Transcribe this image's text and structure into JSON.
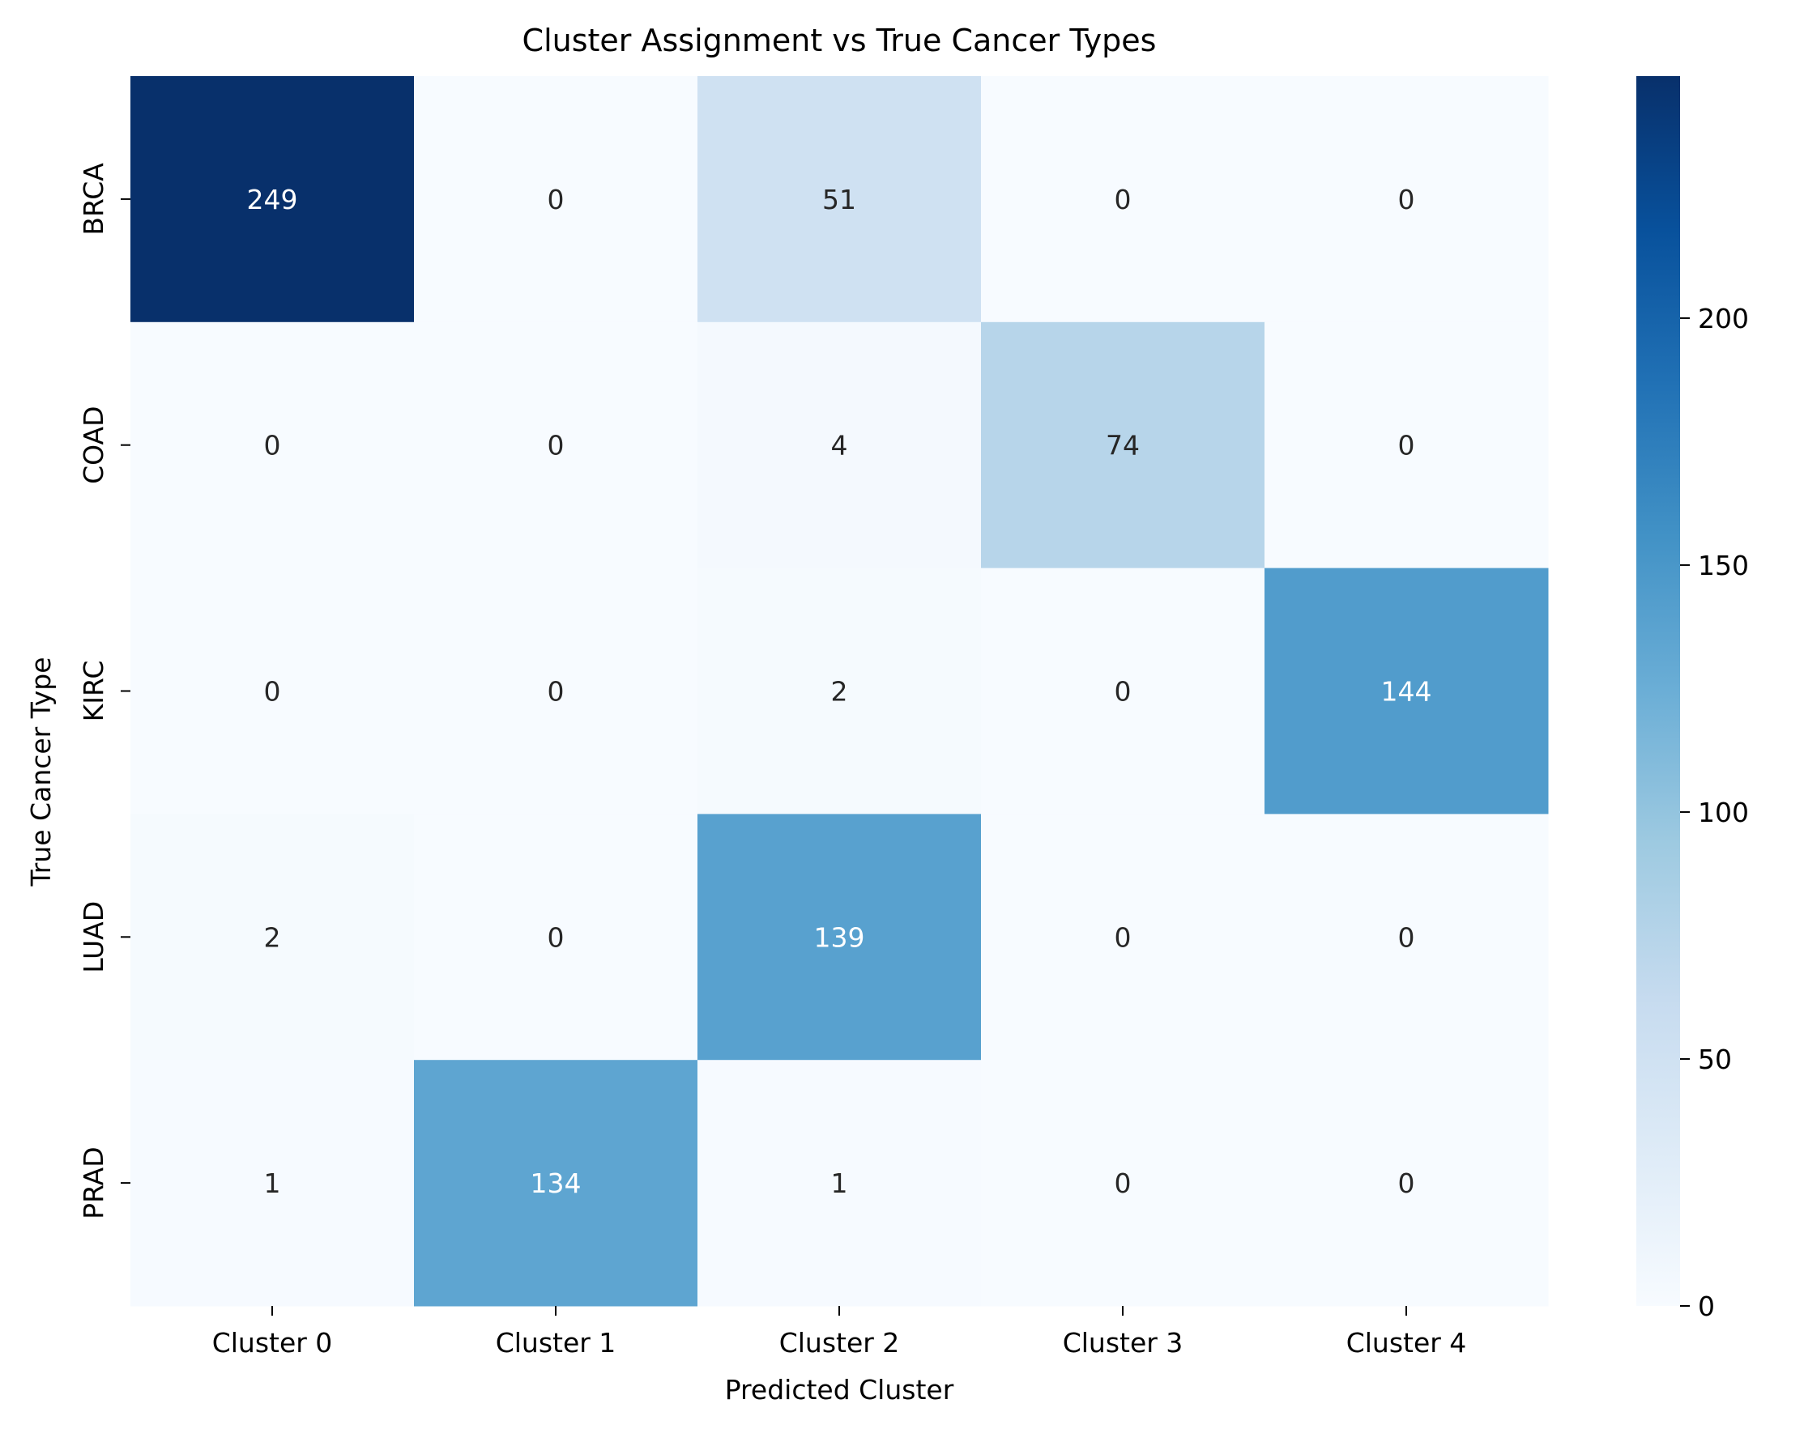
{
  "chart_data": {
    "type": "heatmap",
    "title": "Cluster Assignment vs True Cancer Types",
    "xlabel": "Predicted Cluster",
    "ylabel": "True Cancer Type",
    "x_categories": [
      "Cluster 0",
      "Cluster 1",
      "Cluster 2",
      "Cluster 3",
      "Cluster 4"
    ],
    "y_categories": [
      "BRCA",
      "COAD",
      "KIRC",
      "LUAD",
      "PRAD"
    ],
    "values": [
      [
        249,
        0,
        51,
        0,
        0
      ],
      [
        0,
        0,
        4,
        74,
        0
      ],
      [
        0,
        0,
        2,
        0,
        144
      ],
      [
        2,
        0,
        139,
        0,
        0
      ],
      [
        1,
        134,
        1,
        0,
        0
      ]
    ],
    "colormap": "Blues",
    "color_range": [
      0,
      249
    ],
    "colorbar_ticks": [
      "0",
      "50",
      "100",
      "150",
      "200"
    ],
    "colorbar_tick_values": [
      0,
      50,
      100,
      150,
      200
    ],
    "grid": false,
    "legend": "colorbar-right"
  }
}
